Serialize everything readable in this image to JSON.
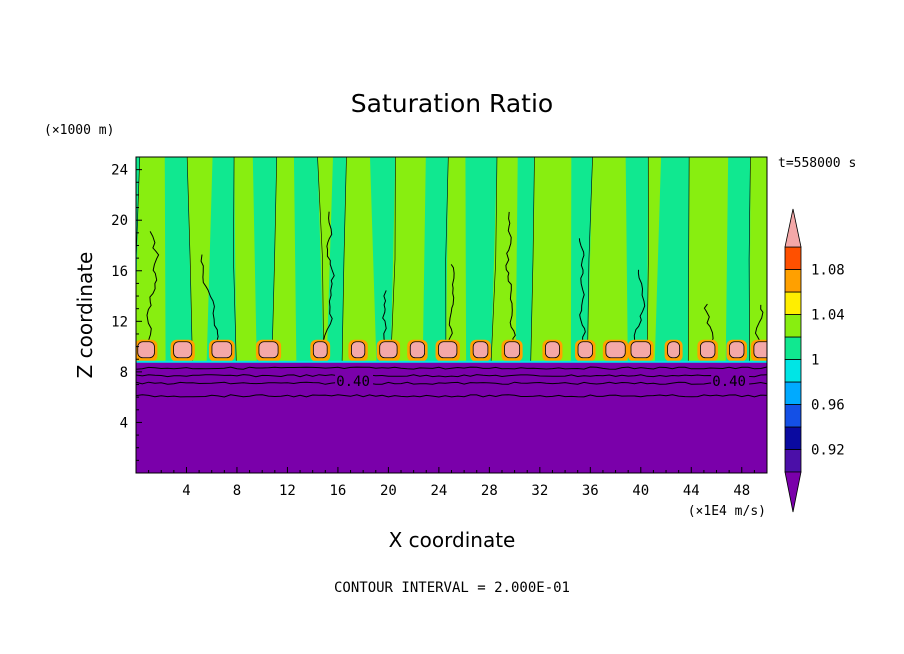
{
  "chart_data": {
    "type": "heatmap",
    "title": "Saturation Ratio",
    "xlabel": "X coordinate",
    "ylabel": "Z coordinate",
    "x_unit": "(×1E4 m/s)",
    "y_unit": "(×1000 m)",
    "time_label": "t=558000 s",
    "footer": "CONTOUR INTERVAL = 2.000E-01",
    "xlim": [
      0,
      50
    ],
    "ylim": [
      0,
      25
    ],
    "x_ticks": [
      4,
      8,
      12,
      16,
      20,
      24,
      28,
      32,
      36,
      40,
      44,
      48
    ],
    "y_ticks": [
      4,
      8,
      12,
      16,
      20,
      24
    ],
    "contour_labels": [
      {
        "text": "0.40",
        "x": 17.2,
        "y": 7.2
      },
      {
        "text": "0.40",
        "x": 47.0,
        "y": 7.2
      }
    ],
    "colorbar": {
      "levels": [
        0.9,
        0.92,
        0.94,
        0.96,
        0.98,
        1.0,
        1.02,
        1.04,
        1.06,
        1.08,
        1.1
      ],
      "colors": [
        "#4b0fa8",
        "#0a0aa0",
        "#1450e6",
        "#00aaff",
        "#00e5e5",
        "#10e890",
        "#88ee10",
        "#ffee00",
        "#ffa000",
        "#ff5000",
        "#ee2020"
      ],
      "under_color": "#7a00aa",
      "over_color": "#f4a8a8",
      "tick_labels": [
        "0.92",
        "0.96",
        "1",
        "1.04",
        "1.08"
      ],
      "tick_values": [
        0.92,
        0.96,
        1.0,
        1.04,
        1.08
      ]
    },
    "regions": {
      "lower_value_color": "#7a00aa",
      "upper_colors": [
        "#10e890",
        "#88ee10"
      ],
      "cap_color": "#f4a8a8",
      "boundary_height": 8.8,
      "cap_centers": [
        0.8,
        3.7,
        6.8,
        10.5,
        14.6,
        17.6,
        20.0,
        22.3,
        24.7,
        27.3,
        29.8,
        33.0,
        35.6,
        38.0,
        40.0,
        42.6,
        45.3,
        47.6,
        49.7
      ]
    }
  }
}
